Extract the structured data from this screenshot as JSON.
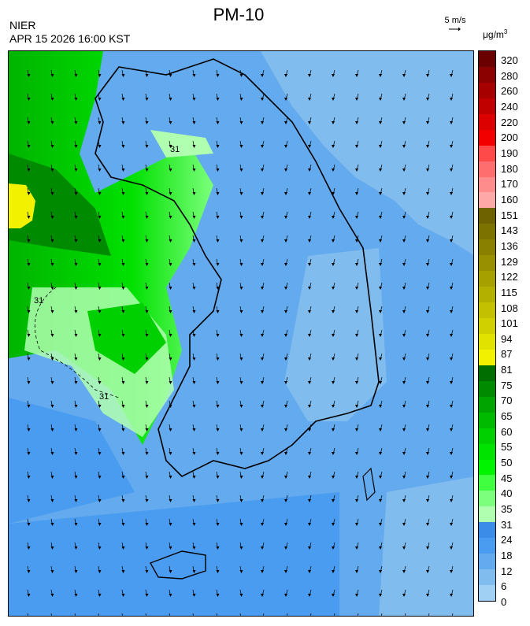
{
  "header": {
    "title": "PM-10",
    "organization": "NIER",
    "datetime": "APR 15 2026 16:00 KST",
    "wind_reference": "5 m/s",
    "unit": "μg/m",
    "unit_exponent": "3"
  },
  "colorbar": {
    "labels": [
      "320",
      "280",
      "260",
      "240",
      "220",
      "200",
      "190",
      "180",
      "170",
      "160",
      "151",
      "143",
      "136",
      "129",
      "122",
      "115",
      "108",
      "101",
      "94",
      "87",
      "81",
      "75",
      "70",
      "65",
      "60",
      "55",
      "50",
      "45",
      "40",
      "35",
      "31",
      "24",
      "18",
      "12",
      "6",
      "0"
    ],
    "colors": [
      "#6a0000",
      "#8b0000",
      "#a60000",
      "#c00000",
      "#dc0000",
      "#f20000",
      "#ff4a4a",
      "#ff6e6e",
      "#ff8c8c",
      "#ffa8a8",
      "#6e6200",
      "#7c7200",
      "#8a8000",
      "#989000",
      "#a6a000",
      "#b4b000",
      "#c2c000",
      "#d0d000",
      "#e2e200",
      "#f2f200",
      "#006e00",
      "#008a00",
      "#00a400",
      "#00ba00",
      "#00d000",
      "#00e200",
      "#00f400",
      "#40ff40",
      "#7cff7c",
      "#b0ffb0",
      "#3a8ce8",
      "#4a9cf0",
      "#64aaee",
      "#80bcee",
      "#a0d0f4"
    ]
  },
  "map": {
    "contour_labels": [
      "31",
      "31",
      "31"
    ]
  }
}
